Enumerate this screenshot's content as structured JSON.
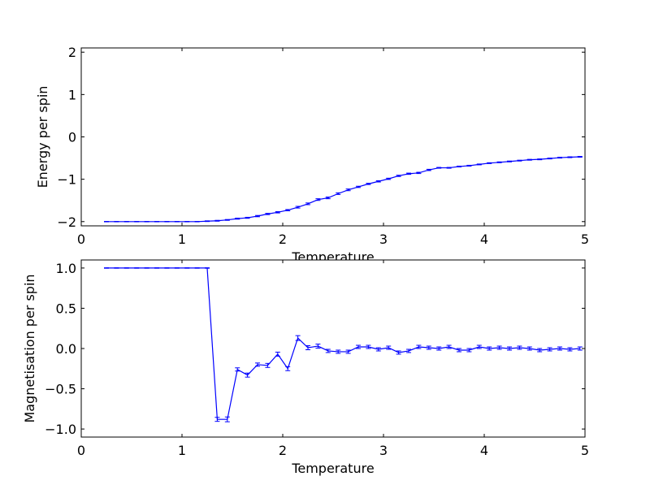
{
  "chart_data": [
    {
      "type": "line",
      "title": "",
      "xlabel": "Temperature",
      "ylabel": "Energy per spin",
      "xlim": [
        0,
        5
      ],
      "ylim": [
        -2.1,
        2.1
      ],
      "x_ticks": [
        0,
        1,
        2,
        3,
        4,
        5
      ],
      "y_ticks": [
        -2,
        -1,
        0,
        1,
        2
      ],
      "grid": false,
      "legend": "none",
      "color": "#0000ff",
      "series": [
        {
          "x": [
            0.25,
            0.35,
            0.45,
            0.55,
            0.65,
            0.75,
            0.85,
            0.95,
            1.05,
            1.15,
            1.25,
            1.35,
            1.45,
            1.55,
            1.65,
            1.75,
            1.85,
            1.95,
            2.05,
            2.15,
            2.25,
            2.35,
            2.45,
            2.55,
            2.65,
            2.75,
            2.85,
            2.95,
            3.05,
            3.15,
            3.25,
            3.35,
            3.45,
            3.55,
            3.65,
            3.75,
            3.85,
            3.95,
            4.05,
            4.15,
            4.25,
            4.35,
            4.45,
            4.55,
            4.65,
            4.75,
            4.85,
            4.95
          ],
          "y": [
            -2.0,
            -2.0,
            -2.0,
            -2.0,
            -2.0,
            -2.0,
            -2.0,
            -2.0,
            -2.0,
            -2.0,
            -1.99,
            -1.98,
            -1.96,
            -1.93,
            -1.91,
            -1.87,
            -1.82,
            -1.78,
            -1.73,
            -1.66,
            -1.58,
            -1.48,
            -1.44,
            -1.34,
            -1.25,
            -1.18,
            -1.11,
            -1.05,
            -0.99,
            -0.92,
            -0.87,
            -0.85,
            -0.78,
            -0.73,
            -0.73,
            -0.7,
            -0.68,
            -0.65,
            -0.62,
            -0.6,
            -0.58,
            -0.56,
            -0.54,
            -0.53,
            -0.51,
            -0.49,
            -0.48,
            -0.47
          ],
          "err": [
            0.005,
            0.005,
            0.005,
            0.005,
            0.005,
            0.005,
            0.005,
            0.005,
            0.005,
            0.005,
            0.008,
            0.01,
            0.01,
            0.012,
            0.012,
            0.015,
            0.015,
            0.015,
            0.015,
            0.02,
            0.02,
            0.02,
            0.02,
            0.02,
            0.02,
            0.015,
            0.015,
            0.015,
            0.015,
            0.015,
            0.015,
            0.015,
            0.015,
            0.01,
            0.01,
            0.01,
            0.01,
            0.01,
            0.01,
            0.01,
            0.01,
            0.01,
            0.01,
            0.01,
            0.01,
            0.01,
            0.01,
            0.01
          ]
        }
      ]
    },
    {
      "type": "line",
      "title": "",
      "xlabel": "Temperature",
      "ylabel": "Magnetisation per spin",
      "xlim": [
        0,
        5
      ],
      "ylim": [
        -1.1,
        1.1
      ],
      "x_ticks": [
        0,
        1,
        2,
        3,
        4,
        5
      ],
      "y_ticks": [
        -1.0,
        -0.5,
        0.0,
        0.5,
        1.0
      ],
      "grid": false,
      "legend": "none",
      "color": "#0000ff",
      "series": [
        {
          "x": [
            0.25,
            0.35,
            0.45,
            0.55,
            0.65,
            0.75,
            0.85,
            0.95,
            1.05,
            1.15,
            1.25,
            1.35,
            1.45,
            1.55,
            1.65,
            1.75,
            1.85,
            1.95,
            2.05,
            2.15,
            2.25,
            2.35,
            2.45,
            2.55,
            2.65,
            2.75,
            2.85,
            2.95,
            3.05,
            3.15,
            3.25,
            3.35,
            3.45,
            3.55,
            3.65,
            3.75,
            3.85,
            3.95,
            4.05,
            4.15,
            4.25,
            4.35,
            4.45,
            4.55,
            4.65,
            4.75,
            4.85,
            4.95
          ],
          "y": [
            1.0,
            1.0,
            1.0,
            1.0,
            1.0,
            1.0,
            1.0,
            1.0,
            1.0,
            1.0,
            1.0,
            -0.88,
            -0.88,
            -0.26,
            -0.33,
            -0.2,
            -0.21,
            -0.07,
            -0.25,
            0.13,
            0.01,
            0.03,
            -0.03,
            -0.04,
            -0.04,
            0.02,
            0.02,
            -0.01,
            0.01,
            -0.05,
            -0.03,
            0.02,
            0.01,
            0.0,
            0.02,
            -0.02,
            -0.02,
            0.02,
            0.0,
            0.01,
            0.0,
            0.01,
            0.0,
            -0.02,
            -0.01,
            0.0,
            -0.01,
            0.0
          ],
          "err": [
            0.003,
            0.003,
            0.003,
            0.003,
            0.003,
            0.003,
            0.003,
            0.003,
            0.003,
            0.003,
            0.003,
            0.025,
            0.03,
            0.02,
            0.025,
            0.02,
            0.025,
            0.025,
            0.025,
            0.03,
            0.025,
            0.025,
            0.02,
            0.02,
            0.02,
            0.02,
            0.02,
            0.02,
            0.02,
            0.02,
            0.02,
            0.02,
            0.02,
            0.02,
            0.02,
            0.02,
            0.02,
            0.02,
            0.02,
            0.02,
            0.02,
            0.02,
            0.02,
            0.02,
            0.02,
            0.02,
            0.02,
            0.02
          ]
        }
      ]
    }
  ]
}
